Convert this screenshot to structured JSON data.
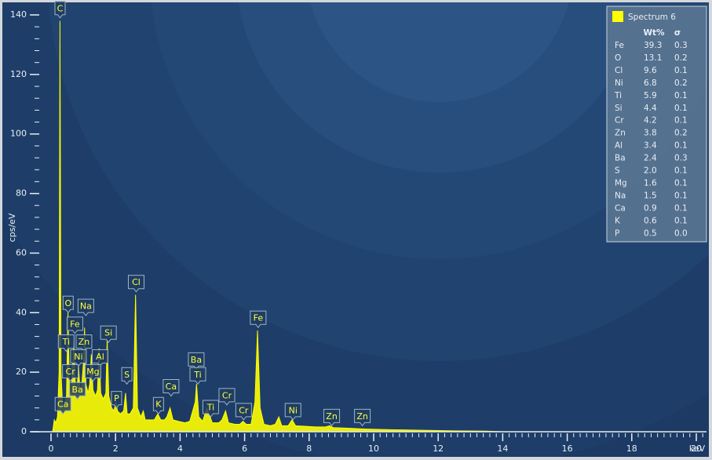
{
  "chart_data": {
    "type": "area",
    "xlabel": "keV",
    "ylabel": "cps/eV",
    "xlim": [
      0,
      20.3
    ],
    "ylim": [
      0,
      143
    ],
    "xticks": [
      0,
      2,
      4,
      6,
      8,
      10,
      12,
      14,
      16,
      18,
      20
    ],
    "yticks": [
      0,
      20,
      40,
      60,
      80,
      100,
      120,
      140
    ],
    "series": [
      {
        "name": "Spectrum 6",
        "color": "#ffff00",
        "x": [
          0.05,
          0.1,
          0.15,
          0.2,
          0.25,
          0.277,
          0.31,
          0.36,
          0.42,
          0.48,
          0.525,
          0.57,
          0.62,
          0.705,
          0.76,
          0.8,
          0.85,
          0.9,
          0.95,
          1.01,
          1.04,
          1.08,
          1.15,
          1.2,
          1.25,
          1.3,
          1.38,
          1.44,
          1.49,
          1.54,
          1.62,
          1.7,
          1.74,
          1.79,
          1.88,
          1.95,
          2.01,
          2.06,
          2.15,
          2.25,
          2.31,
          2.36,
          2.45,
          2.55,
          2.62,
          2.68,
          2.78,
          2.86,
          2.92,
          3.05,
          3.2,
          3.31,
          3.4,
          3.52,
          3.59,
          3.69,
          3.78,
          3.95,
          4.15,
          4.3,
          4.47,
          4.51,
          4.58,
          4.7,
          4.83,
          4.93,
          5.0,
          5.2,
          5.3,
          5.41,
          5.5,
          5.7,
          5.85,
          5.95,
          6.05,
          6.2,
          6.32,
          6.4,
          6.48,
          6.6,
          6.8,
          6.95,
          7.06,
          7.15,
          7.35,
          7.47,
          7.58,
          7.9,
          8.2,
          8.5,
          8.63,
          8.75,
          9.2,
          9.57,
          9.8,
          10.5,
          11.5,
          12.5,
          13.5,
          14,
          20.3
        ],
        "values": [
          0,
          4,
          3,
          5,
          20,
          138,
          20,
          8,
          9,
          12,
          40,
          14,
          12,
          30,
          14,
          13,
          22,
          14,
          15,
          24,
          35,
          16,
          13,
          16,
          26,
          14,
          12,
          14,
          28,
          13,
          11,
          13,
          31,
          12,
          8,
          7,
          10,
          7,
          6,
          7,
          13,
          6,
          6,
          8,
          46,
          8,
          5,
          7,
          4,
          4,
          4,
          6,
          4,
          4,
          5,
          8,
          4,
          3.5,
          3,
          3.5,
          10,
          16,
          5,
          3.5,
          8,
          5,
          3,
          3,
          4,
          7,
          3,
          2.5,
          2.5,
          3.5,
          2.5,
          2.5,
          10,
          34,
          8,
          2.5,
          2,
          2.5,
          5,
          2,
          2,
          4,
          2,
          1.8,
          1.6,
          1.6,
          2,
          1.4,
          1.2,
          1,
          0.9,
          0.7,
          0.5,
          0.3,
          0.2,
          0,
          0
        ]
      }
    ],
    "annotations": [
      {
        "text": "C",
        "x": 0.28,
        "y": 139
      },
      {
        "text": "O",
        "x": 0.53,
        "x2": null,
        "y": 40
      },
      {
        "text": "Na",
        "x": 1.08,
        "y": 39
      },
      {
        "text": "Fe",
        "x": 0.74,
        "y": 33
      },
      {
        "text": "Ti",
        "x": 0.47,
        "y": 27
      },
      {
        "text": "Zn",
        "x": 1.02,
        "y": 27
      },
      {
        "text": "Ni",
        "x": 0.85,
        "y": 22
      },
      {
        "text": "Al",
        "x": 1.52,
        "y": 22
      },
      {
        "text": "Si",
        "x": 1.78,
        "y": 30
      },
      {
        "text": "Mg",
        "x": 1.3,
        "y": 17
      },
      {
        "text": "Cr",
        "x": 0.6,
        "y": 17
      },
      {
        "text": "Ba",
        "x": 0.82,
        "y": 11
      },
      {
        "text": "P",
        "x": 2.03,
        "y": 8
      },
      {
        "text": "S",
        "x": 2.35,
        "y": 16
      },
      {
        "text": "Cl",
        "x": 2.64,
        "y": 47
      },
      {
        "text": "Ca",
        "x": 0.37,
        "y": 6
      },
      {
        "text": "Ca",
        "x": 3.72,
        "y": 12
      },
      {
        "text": "K",
        "x": 3.33,
        "y": 6
      },
      {
        "text": "Ba",
        "x": 4.5,
        "y": 21
      },
      {
        "text": "Ti",
        "x": 4.55,
        "y": 16
      },
      {
        "text": "Ti",
        "x": 4.95,
        "y": 5
      },
      {
        "text": "Cr",
        "x": 5.45,
        "y": 9
      },
      {
        "text": "Cr",
        "x": 5.97,
        "y": 4
      },
      {
        "text": "Fe",
        "x": 6.42,
        "y": 35
      },
      {
        "text": "Ni",
        "x": 7.5,
        "y": 4
      },
      {
        "text": "Zn",
        "x": 8.7,
        "y": 2
      },
      {
        "text": "Zn",
        "x": 9.65,
        "y": 2
      }
    ],
    "table": {
      "columns": [
        "Wt%",
        "σ"
      ],
      "rows": [
        [
          "Fe",
          "39.3",
          "0.3"
        ],
        [
          "O",
          "13.1",
          "0.2"
        ],
        [
          "Cl",
          "9.6",
          "0.1"
        ],
        [
          "Ni",
          "6.8",
          "0.2"
        ],
        [
          "Ti",
          "5.9",
          "0.1"
        ],
        [
          "Si",
          "4.4",
          "0.1"
        ],
        [
          "Cr",
          "4.2",
          "0.1"
        ],
        [
          "Zn",
          "3.8",
          "0.2"
        ],
        [
          "Al",
          "3.4",
          "0.1"
        ],
        [
          "Ba",
          "2.4",
          "0.3"
        ],
        [
          "S",
          "2.0",
          "0.1"
        ],
        [
          "Mg",
          "1.6",
          "0.1"
        ],
        [
          "Na",
          "1.5",
          "0.1"
        ],
        [
          "Ca",
          "0.9",
          "0.1"
        ],
        [
          "K",
          "0.6",
          "0.1"
        ],
        [
          "P",
          "0.5",
          "0.0"
        ]
      ]
    }
  }
}
